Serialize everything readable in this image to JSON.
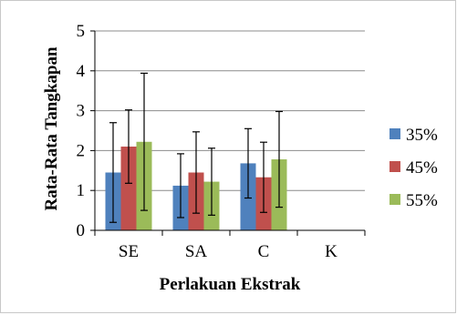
{
  "chart_data": {
    "type": "bar",
    "categories": [
      "SE",
      "SA",
      "C",
      "K"
    ],
    "series": [
      {
        "name": "35%",
        "values": [
          1.45,
          1.12,
          1.68,
          null
        ],
        "errors": [
          1.25,
          0.8,
          0.87,
          null
        ],
        "color": "#4f81bd"
      },
      {
        "name": "45%",
        "values": [
          2.1,
          1.45,
          1.33,
          null
        ],
        "errors": [
          0.92,
          1.02,
          0.88,
          null
        ],
        "color": "#c0504d"
      },
      {
        "name": "55%",
        "values": [
          2.22,
          1.22,
          1.78,
          null
        ],
        "errors": [
          1.72,
          0.84,
          1.2,
          null
        ],
        "color": "#9bbb59"
      }
    ],
    "xlabel": "Perlakuan Ekstrak",
    "ylabel": "Rata-Rata Tangkapan",
    "ylim": [
      0,
      5
    ],
    "yticks": [
      "0",
      "1",
      "2",
      "3",
      "4",
      "5"
    ],
    "grid": true,
    "legend_position": "right"
  }
}
